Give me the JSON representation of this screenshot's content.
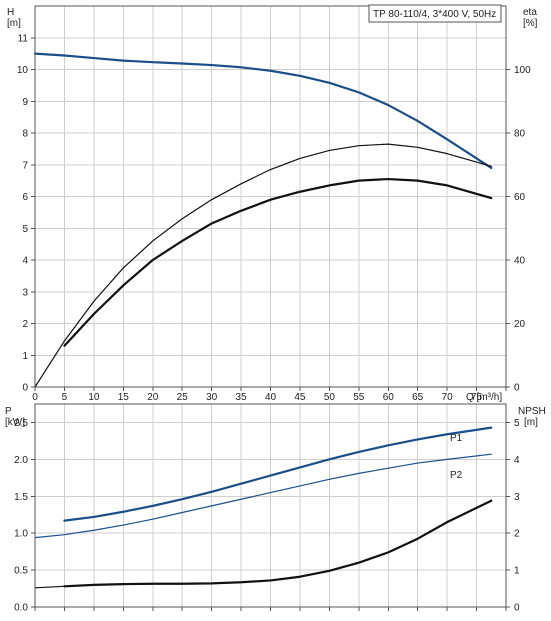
{
  "chart_data": [
    {
      "type": "line",
      "title": "TP 80-110/4, 3*400 V, 50Hz",
      "xlabel": "Q [m³/h]",
      "x_ticks": [
        "0",
        "5",
        "10",
        "15",
        "20",
        "25",
        "30",
        "35",
        "40",
        "45",
        "50",
        "55",
        "60",
        "65",
        "70",
        "75"
      ],
      "xlim": [
        0,
        80
      ],
      "y_axes": {
        "left": {
          "label_top": "H",
          "label_unit": "[m]",
          "lim": [
            0,
            12
          ],
          "ticks": [
            "0",
            "1",
            "2",
            "3",
            "4",
            "5",
            "6",
            "7",
            "8",
            "9",
            "10",
            "11"
          ]
        },
        "right": {
          "label_top": "eta",
          "label_unit": "[%]",
          "lim": [
            0,
            120
          ],
          "ticks": [
            "0",
            "20",
            "40",
            "60",
            "80",
            "100"
          ]
        }
      },
      "grid": true,
      "series": [
        {
          "axis": "left",
          "color": "#1a4f8a",
          "width": 2.2,
          "x": [
            0,
            5,
            10,
            15,
            20,
            25,
            30,
            35,
            40,
            45,
            50,
            55,
            60,
            65,
            70,
            77.5
          ],
          "y": [
            10.5,
            10.44,
            10.36,
            10.28,
            10.23,
            10.19,
            10.14,
            10.07,
            9.96,
            9.8,
            9.58,
            9.28,
            8.88,
            8.38,
            7.8,
            6.9
          ]
        },
        {
          "axis": "right",
          "color": "#111111",
          "width": 1.2,
          "x": [
            0,
            5,
            10,
            15,
            20,
            25,
            30,
            35,
            40,
            45,
            50,
            55,
            60,
            65,
            70,
            77.5
          ],
          "y": [
            0,
            14.5,
            27,
            37.5,
            46,
            53,
            59,
            64,
            68.5,
            72,
            74.5,
            76,
            76.5,
            75.5,
            73.5,
            69.5
          ]
        },
        {
          "axis": "right",
          "color": "#111111",
          "width": 2.2,
          "x": [
            5,
            10,
            15,
            20,
            25,
            30,
            35,
            40,
            45,
            50,
            55,
            60,
            65,
            70,
            77.5
          ],
          "y": [
            13,
            23,
            32,
            40,
            46,
            51.5,
            55.5,
            59,
            61.5,
            63.5,
            65,
            65.5,
            65,
            63.5,
            59.5
          ]
        }
      ]
    },
    {
      "type": "line",
      "xlim": [
        0,
        80
      ],
      "y_axes": {
        "left": {
          "label_top": "P",
          "label_unit": "[kW]",
          "lim": [
            0,
            2.75
          ],
          "ticks": [
            "0.0",
            "0.5",
            "1.0",
            "1.5",
            "2.0",
            "2.5"
          ]
        },
        "right": {
          "label_top": "NPSH",
          "label_unit": "[m]",
          "lim": [
            0,
            5.5
          ],
          "ticks": [
            "0",
            "1",
            "2",
            "3",
            "4",
            "5"
          ]
        }
      },
      "grid": true,
      "series": [
        {
          "axis": "left",
          "name": "P1",
          "color": "#1a4f8a",
          "width": 2.2,
          "x": [
            5,
            10,
            15,
            20,
            25,
            30,
            35,
            40,
            45,
            50,
            55,
            60,
            65,
            70,
            77.5
          ],
          "y": [
            1.17,
            1.22,
            1.29,
            1.37,
            1.46,
            1.56,
            1.67,
            1.78,
            1.89,
            2.0,
            2.1,
            2.19,
            2.27,
            2.34,
            2.43
          ]
        },
        {
          "axis": "left",
          "name": "P2",
          "color": "#1a4f8a",
          "width": 1.2,
          "x": [
            0,
            5,
            10,
            15,
            20,
            25,
            30,
            35,
            40,
            45,
            50,
            55,
            60,
            65,
            70,
            77.5
          ],
          "y": [
            0.94,
            0.98,
            1.04,
            1.11,
            1.19,
            1.28,
            1.37,
            1.46,
            1.55,
            1.64,
            1.73,
            1.81,
            1.88,
            1.95,
            2.0,
            2.07
          ]
        },
        {
          "axis": "right",
          "color": "#111111",
          "width": 1.2,
          "x": [
            0,
            5
          ],
          "y": [
            0.52,
            0.56
          ]
        },
        {
          "axis": "right",
          "color": "#111111",
          "width": 2.2,
          "x": [
            5,
            10,
            15,
            20,
            25,
            30,
            35,
            40,
            45,
            50,
            55,
            60,
            65,
            70,
            77.5
          ],
          "y": [
            0.56,
            0.6,
            0.62,
            0.63,
            0.63,
            0.64,
            0.67,
            0.72,
            0.82,
            0.98,
            1.2,
            1.48,
            1.85,
            2.3,
            2.88
          ]
        }
      ]
    }
  ]
}
